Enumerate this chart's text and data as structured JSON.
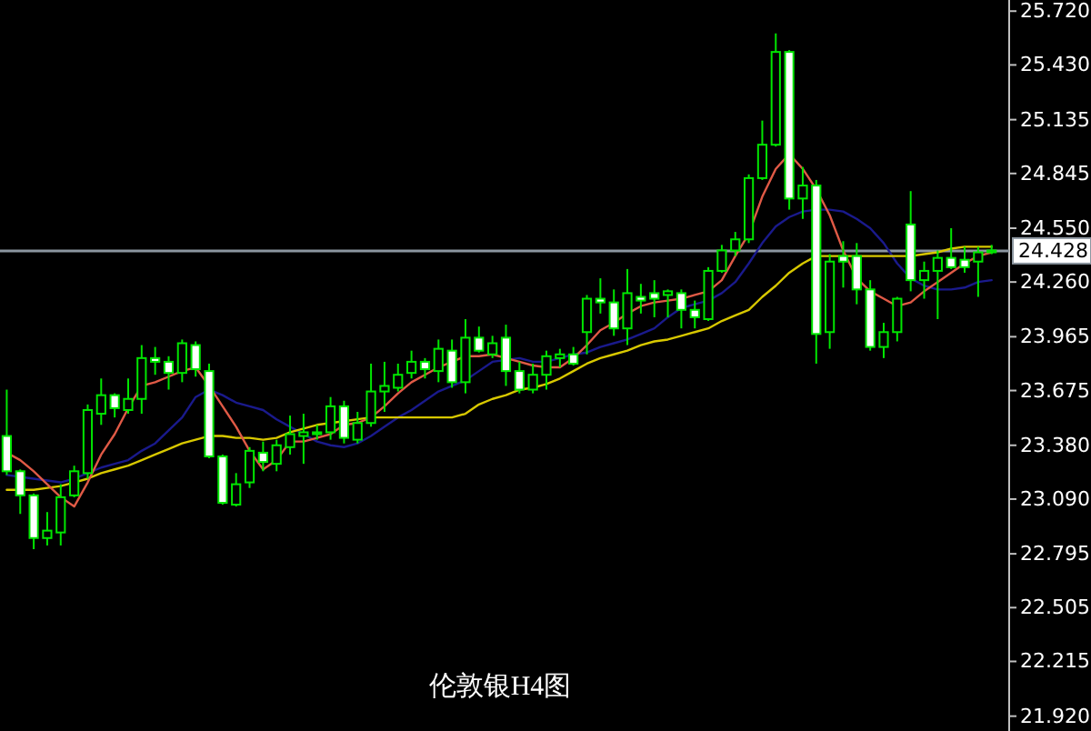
{
  "chart_data": {
    "type": "candlestick",
    "title": "伦敦银H4图",
    "categories": [
      null,
      null,
      null,
      null,
      null,
      null,
      null,
      null,
      null,
      null,
      null,
      null,
      null,
      null,
      null,
      null,
      null,
      null,
      null,
      null,
      null,
      null,
      null,
      null,
      null,
      null,
      null,
      null,
      null,
      null,
      null,
      null,
      null,
      null,
      null,
      null,
      null,
      null,
      null,
      null,
      null,
      null,
      null,
      null,
      null,
      null,
      null,
      null,
      null,
      null,
      null,
      null,
      null,
      null,
      null,
      null,
      null,
      null,
      null,
      null,
      null,
      null,
      null,
      null,
      null,
      null,
      null,
      null,
      null,
      null,
      null,
      null,
      null,
      null
    ],
    "ylim": [
      21.84,
      25.78
    ],
    "yticks": [
      {
        "value": 25.72,
        "label": "25.720"
      },
      {
        "value": 25.43,
        "label": "25.430"
      },
      {
        "value": 25.135,
        "label": "25.135"
      },
      {
        "value": 24.845,
        "label": "24.845"
      },
      {
        "value": 24.55,
        "label": "24.550"
      },
      {
        "value": 24.26,
        "label": "24.260"
      },
      {
        "value": 23.965,
        "label": "23.965"
      },
      {
        "value": 23.675,
        "label": "23.675"
      },
      {
        "value": 23.38,
        "label": "23.380"
      },
      {
        "value": 23.09,
        "label": "23.090"
      },
      {
        "value": 22.795,
        "label": "22.795"
      },
      {
        "value": 22.505,
        "label": "22.505"
      },
      {
        "value": 22.215,
        "label": "22.215"
      },
      {
        "value": 21.92,
        "label": "21.920"
      }
    ],
    "tick_labels": "y",
    "ref_lines": [
      {
        "axis": "y",
        "value": 24.428,
        "label": "24.428",
        "color": "#8c96a0"
      }
    ],
    "series": [
      {
        "type": "line",
        "color": "#1a1a8c",
        "values": [
          23.22,
          23.21,
          23.2,
          23.19,
          23.18,
          23.2,
          23.23,
          23.26,
          23.28,
          23.3,
          23.35,
          23.39,
          23.46,
          23.53,
          23.64,
          23.68,
          23.65,
          23.61,
          23.59,
          23.57,
          23.52,
          23.48,
          23.44,
          23.4,
          23.38,
          23.37,
          23.39,
          23.43,
          23.48,
          23.53,
          23.57,
          23.62,
          23.67,
          23.7,
          23.73,
          23.78,
          23.83,
          23.84,
          23.85,
          23.83,
          23.83,
          23.85,
          23.87,
          23.88,
          23.91,
          23.93,
          23.95,
          23.98,
          24.01,
          24.07,
          24.12,
          24.14,
          24.16,
          24.2,
          24.26,
          24.36,
          24.47,
          24.56,
          24.61,
          24.64,
          24.65,
          24.65,
          24.64,
          24.6,
          24.55,
          24.47,
          24.36,
          24.28,
          24.24,
          24.22,
          24.22,
          24.23,
          24.26,
          24.27
        ]
      },
      {
        "type": "line",
        "color": "#d8c800",
        "values": [
          23.14,
          23.14,
          23.14,
          23.15,
          23.16,
          23.18,
          23.2,
          23.23,
          23.25,
          23.27,
          23.3,
          23.33,
          23.36,
          23.39,
          23.41,
          23.43,
          23.43,
          23.42,
          23.42,
          23.41,
          23.42,
          23.45,
          23.47,
          23.49,
          23.5,
          23.51,
          23.52,
          23.53,
          23.53,
          23.53,
          23.53,
          23.53,
          23.53,
          23.53,
          23.55,
          23.6,
          23.63,
          23.65,
          23.68,
          23.69,
          23.71,
          23.74,
          23.78,
          23.82,
          23.85,
          23.87,
          23.89,
          23.92,
          23.94,
          23.95,
          23.97,
          23.99,
          24.01,
          24.05,
          24.08,
          24.11,
          24.18,
          24.24,
          24.31,
          24.36,
          24.4,
          24.4,
          24.4,
          24.4,
          24.4,
          24.4,
          24.4,
          24.4,
          24.41,
          24.42,
          24.44,
          24.45,
          24.45,
          24.45
        ]
      },
      {
        "type": "line",
        "color": "#e05a46",
        "values": [
          23.34,
          23.3,
          23.24,
          23.17,
          23.1,
          23.05,
          23.18,
          23.33,
          23.44,
          23.58,
          23.7,
          23.72,
          23.75,
          23.78,
          23.8,
          23.7,
          23.59,
          23.48,
          23.35,
          23.25,
          23.3,
          23.4,
          23.4,
          23.42,
          23.44,
          23.49,
          23.5,
          23.53,
          23.59,
          23.66,
          23.72,
          23.76,
          23.8,
          23.83,
          23.86,
          23.86,
          23.87,
          23.85,
          23.83,
          23.81,
          23.8,
          23.8,
          23.85,
          23.92,
          24.0,
          24.04,
          24.09,
          24.13,
          24.15,
          24.16,
          24.17,
          24.19,
          24.21,
          24.27,
          24.4,
          24.52,
          24.72,
          24.87,
          24.95,
          24.87,
          24.76,
          24.62,
          24.43,
          24.28,
          24.21,
          24.17,
          24.13,
          24.15,
          24.21,
          24.26,
          24.31,
          24.36,
          24.4,
          24.42
        ]
      },
      {
        "color": "#00e600",
        "ohlc": [
          [
            23.43,
            23.68,
            23.22,
            23.24
          ],
          [
            23.24,
            23.25,
            23.01,
            23.11
          ],
          [
            23.11,
            23.12,
            22.82,
            22.88
          ],
          [
            22.88,
            23.02,
            22.84,
            22.92
          ],
          [
            22.91,
            23.17,
            22.84,
            23.1
          ],
          [
            23.11,
            23.27,
            23.1,
            23.24
          ],
          [
            23.23,
            23.6,
            23.2,
            23.57
          ],
          [
            23.55,
            23.74,
            23.49,
            23.65
          ],
          [
            23.65,
            23.66,
            23.53,
            23.58
          ],
          [
            23.57,
            23.74,
            23.55,
            23.63
          ],
          [
            23.63,
            23.92,
            23.55,
            23.85
          ],
          [
            23.85,
            23.91,
            23.76,
            23.83
          ],
          [
            23.83,
            23.86,
            23.68,
            23.77
          ],
          [
            23.77,
            23.95,
            23.72,
            23.93
          ],
          [
            23.92,
            23.94,
            23.75,
            23.79
          ],
          [
            23.78,
            23.82,
            23.31,
            23.32
          ],
          [
            23.32,
            23.33,
            23.06,
            23.07
          ],
          [
            23.06,
            23.23,
            23.05,
            23.17
          ],
          [
            23.18,
            23.37,
            23.15,
            23.35
          ],
          [
            23.34,
            23.4,
            23.24,
            23.29
          ],
          [
            23.28,
            23.41,
            23.24,
            23.38
          ],
          [
            23.37,
            23.54,
            23.33,
            23.44
          ],
          [
            23.43,
            23.55,
            23.28,
            23.45
          ],
          [
            23.44,
            23.49,
            23.41,
            23.45
          ],
          [
            23.45,
            23.64,
            23.41,
            23.59
          ],
          [
            23.59,
            23.62,
            23.39,
            23.42
          ],
          [
            23.41,
            23.56,
            23.39,
            23.5
          ],
          [
            23.5,
            23.82,
            23.48,
            23.67
          ],
          [
            23.67,
            23.83,
            23.56,
            23.7
          ],
          [
            23.69,
            23.82,
            23.67,
            23.76
          ],
          [
            23.77,
            23.89,
            23.74,
            23.83
          ],
          [
            23.83,
            23.85,
            23.74,
            23.79
          ],
          [
            23.78,
            23.95,
            23.72,
            23.9
          ],
          [
            23.89,
            23.95,
            23.69,
            23.72
          ],
          [
            23.72,
            24.06,
            23.66,
            23.96
          ],
          [
            23.96,
            24.02,
            23.88,
            23.89
          ],
          [
            23.87,
            23.97,
            23.85,
            23.93
          ],
          [
            23.96,
            24.03,
            23.7,
            23.78
          ],
          [
            23.78,
            23.83,
            23.66,
            23.68
          ],
          [
            23.68,
            23.82,
            23.66,
            23.76
          ],
          [
            23.76,
            23.89,
            23.68,
            23.86
          ],
          [
            23.85,
            23.9,
            23.8,
            23.87
          ],
          [
            23.87,
            23.91,
            23.81,
            23.82
          ],
          [
            23.99,
            24.19,
            23.87,
            24.17
          ],
          [
            24.17,
            24.28,
            24.09,
            24.15
          ],
          [
            24.15,
            24.22,
            23.97,
            24.01
          ],
          [
            24.01,
            24.33,
            23.92,
            24.2
          ],
          [
            24.18,
            24.25,
            24.09,
            24.16
          ],
          [
            24.2,
            24.27,
            24.07,
            24.17
          ],
          [
            24.19,
            24.22,
            24.07,
            24.21
          ],
          [
            24.2,
            24.22,
            24.01,
            24.11
          ],
          [
            24.11,
            24.16,
            24.01,
            24.07
          ],
          [
            24.06,
            24.34,
            24.05,
            24.32
          ],
          [
            24.32,
            24.46,
            24.31,
            24.43
          ],
          [
            24.43,
            24.53,
            24.4,
            24.49
          ],
          [
            24.49,
            24.84,
            24.47,
            24.82
          ],
          [
            24.82,
            25.13,
            24.81,
            25.0
          ],
          [
            25.0,
            25.6,
            24.99,
            25.5
          ],
          [
            25.5,
            25.51,
            24.65,
            24.71
          ],
          [
            24.71,
            24.88,
            24.6,
            24.78
          ],
          [
            24.78,
            24.81,
            23.82,
            23.98
          ],
          [
            23.99,
            24.41,
            23.9,
            24.37
          ],
          [
            24.4,
            24.48,
            24.23,
            24.37
          ],
          [
            24.4,
            24.47,
            24.14,
            24.22
          ],
          [
            24.22,
            24.27,
            23.89,
            23.91
          ],
          [
            23.91,
            24.04,
            23.85,
            23.99
          ],
          [
            23.99,
            24.18,
            23.94,
            24.17
          ],
          [
            24.57,
            24.75,
            24.21,
            24.27
          ],
          [
            24.27,
            24.37,
            24.17,
            24.32
          ],
          [
            24.32,
            24.43,
            24.06,
            24.39
          ],
          [
            24.39,
            24.55,
            24.33,
            24.34
          ],
          [
            24.38,
            24.45,
            24.31,
            24.34
          ],
          [
            24.37,
            24.45,
            24.18,
            24.42
          ],
          [
            24.42,
            24.46,
            24.41,
            24.43
          ]
        ]
      }
    ]
  }
}
